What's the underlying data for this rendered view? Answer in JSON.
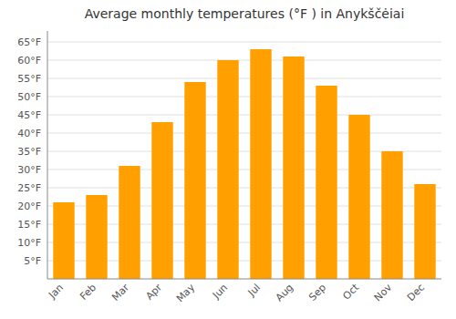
{
  "chart_data": {
    "type": "bar",
    "title": "Average monthly temperatures (°F ) in Anykščėiai",
    "categories": [
      "Jan",
      "Feb",
      "Mar",
      "Apr",
      "May",
      "Jun",
      "Jul",
      "Aug",
      "Sep",
      "Oct",
      "Nov",
      "Dec"
    ],
    "values": [
      21,
      23,
      31,
      43,
      54,
      60,
      63,
      61,
      53,
      45,
      35,
      26
    ],
    "color": "#FFA000",
    "ylim": [
      0,
      68
    ],
    "yticks": [
      {
        "value": 5,
        "label": "5°F"
      },
      {
        "value": 10,
        "label": "10°F"
      },
      {
        "value": 15,
        "label": "15°F"
      },
      {
        "value": 20,
        "label": "20°F"
      },
      {
        "value": 25,
        "label": "25°F"
      },
      {
        "value": 30,
        "label": "30°F"
      },
      {
        "value": 35,
        "label": "35°F"
      },
      {
        "value": 40,
        "label": "40°F"
      },
      {
        "value": 45,
        "label": "45°F"
      },
      {
        "value": 50,
        "label": "50°F"
      },
      {
        "value": 55,
        "label": "55°F"
      },
      {
        "value": 60,
        "label": "60°F"
      },
      {
        "value": 65,
        "label": "65°F"
      }
    ],
    "grid": true
  }
}
